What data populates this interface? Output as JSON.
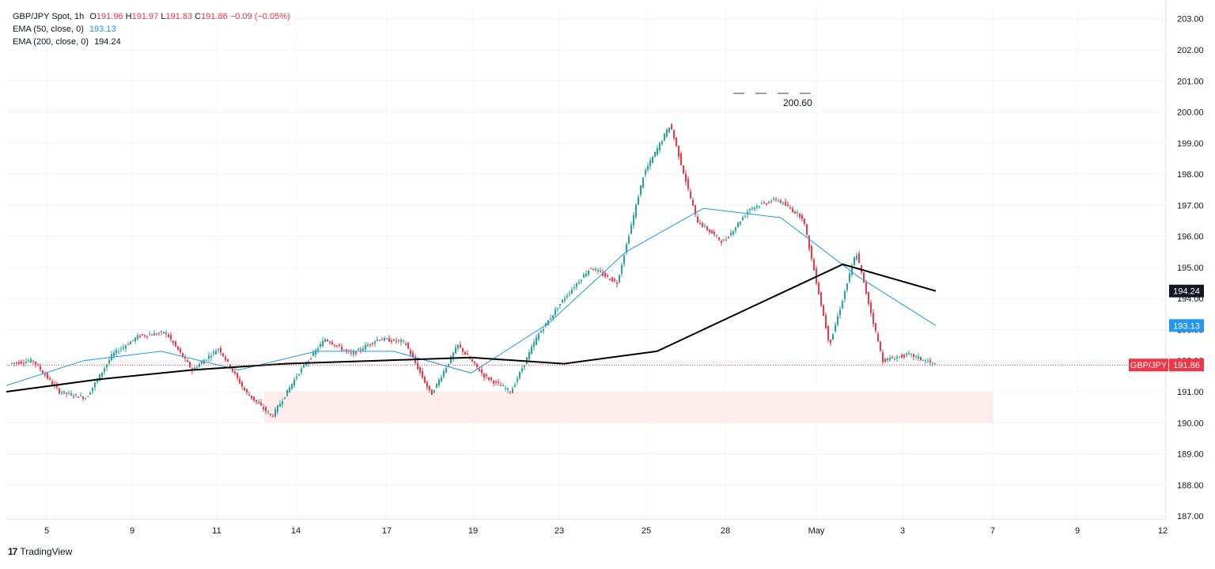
{
  "legend": {
    "symbol_line": "GBP/JPY Spot, 1h",
    "o_label": "O",
    "o_value": "191.96",
    "h_label": "H",
    "h_value": "191.97",
    "l_label": "L",
    "l_value": "191.83",
    "c_label": "C",
    "c_value": "191.86",
    "change": "−0.09 (−0.05%)",
    "ema50_label": "EMA (50, close, 0)",
    "ema50_value": "193.13",
    "ema200_label": "EMA (200, close, 0)",
    "ema200_value": "194.24"
  },
  "brand": {
    "logo": "17",
    "name": "TradingView"
  },
  "colors": {
    "up": "#26a69a",
    "down": "#f23645",
    "ema50": "#2196f3",
    "ema200": "#000000",
    "zone": "#fdecec",
    "grid": "#f0f3fa",
    "price_line": "#f23645"
  },
  "chart_data": {
    "type": "candlestick",
    "title": "GBP/JPY Spot, 1h",
    "x_tick_labels": [
      "5",
      "9",
      "11",
      "14",
      "17",
      "19",
      "23",
      "25",
      "28",
      "May",
      "3",
      "7",
      "9",
      "12"
    ],
    "y_tick_labels": [
      "187.00",
      "188.00",
      "189.00",
      "190.00",
      "191.00",
      "192.00",
      "193.00",
      "194.00",
      "195.00",
      "196.00",
      "197.00",
      "198.00",
      "199.00",
      "200.00",
      "201.00",
      "202.00",
      "203.00"
    ],
    "ylim": [
      186.9,
      203.4
    ],
    "grid": true,
    "annotation": {
      "label": "200.60",
      "value": 200.6
    },
    "support_zone": [
      190.0,
      191.0
    ],
    "last_price": {
      "label": "GBP/JPY",
      "value": "191.86"
    },
    "ema50_badge": "193.13",
    "ema200_badge": "194.24",
    "price_path": [
      [
        "5",
        191.9
      ],
      [
        "5",
        192.0
      ],
      [
        "5",
        191.0
      ],
      [
        "5",
        190.8
      ],
      [
        "9",
        192.2
      ],
      [
        "9",
        192.8
      ],
      [
        "11",
        192.9
      ],
      [
        "11",
        191.7
      ],
      [
        "11",
        192.4
      ],
      [
        "14",
        191.0
      ],
      [
        "14",
        190.2
      ],
      [
        "14",
        191.6
      ],
      [
        "17",
        192.7
      ],
      [
        "17",
        192.2
      ],
      [
        "17",
        192.7
      ],
      [
        "19",
        192.6
      ],
      [
        "19",
        190.9
      ],
      [
        "19",
        192.5
      ],
      [
        "23",
        191.5
      ],
      [
        "23",
        191.0
      ],
      [
        "23",
        192.8
      ],
      [
        "25",
        194.0
      ],
      [
        "25",
        195.0
      ],
      [
        "25",
        194.5
      ],
      [
        "28",
        198.0
      ],
      [
        "28",
        199.6
      ],
      [
        "28",
        196.5
      ],
      [
        "28",
        195.8
      ],
      [
        "May",
        196.9
      ],
      [
        "May",
        197.2
      ],
      [
        "May",
        196.6
      ],
      [
        "May",
        192.5
      ],
      [
        "May",
        195.5
      ],
      [
        "3",
        192.0
      ],
      [
        "3",
        192.2
      ],
      [
        "3",
        191.86
      ]
    ],
    "ema50": [
      [
        "5",
        191.2
      ],
      [
        "9",
        192.0
      ],
      [
        "11",
        192.3
      ],
      [
        "14",
        191.7
      ],
      [
        "17",
        192.3
      ],
      [
        "19",
        192.3
      ],
      [
        "23",
        191.6
      ],
      [
        "25",
        193.2
      ],
      [
        "28",
        195.5
      ],
      [
        "May",
        196.9
      ],
      [
        "May",
        196.6
      ],
      [
        "3",
        194.7
      ],
      [
        "3",
        193.13
      ]
    ],
    "ema200": [
      [
        "5",
        191.0
      ],
      [
        "9",
        191.4
      ],
      [
        "11",
        191.7
      ],
      [
        "14",
        191.9
      ],
      [
        "17",
        192.0
      ],
      [
        "19",
        192.1
      ],
      [
        "23",
        191.9
      ],
      [
        "25",
        192.3
      ],
      [
        "28",
        193.7
      ],
      [
        "May",
        195.1
      ],
      [
        "3",
        194.24
      ]
    ]
  }
}
